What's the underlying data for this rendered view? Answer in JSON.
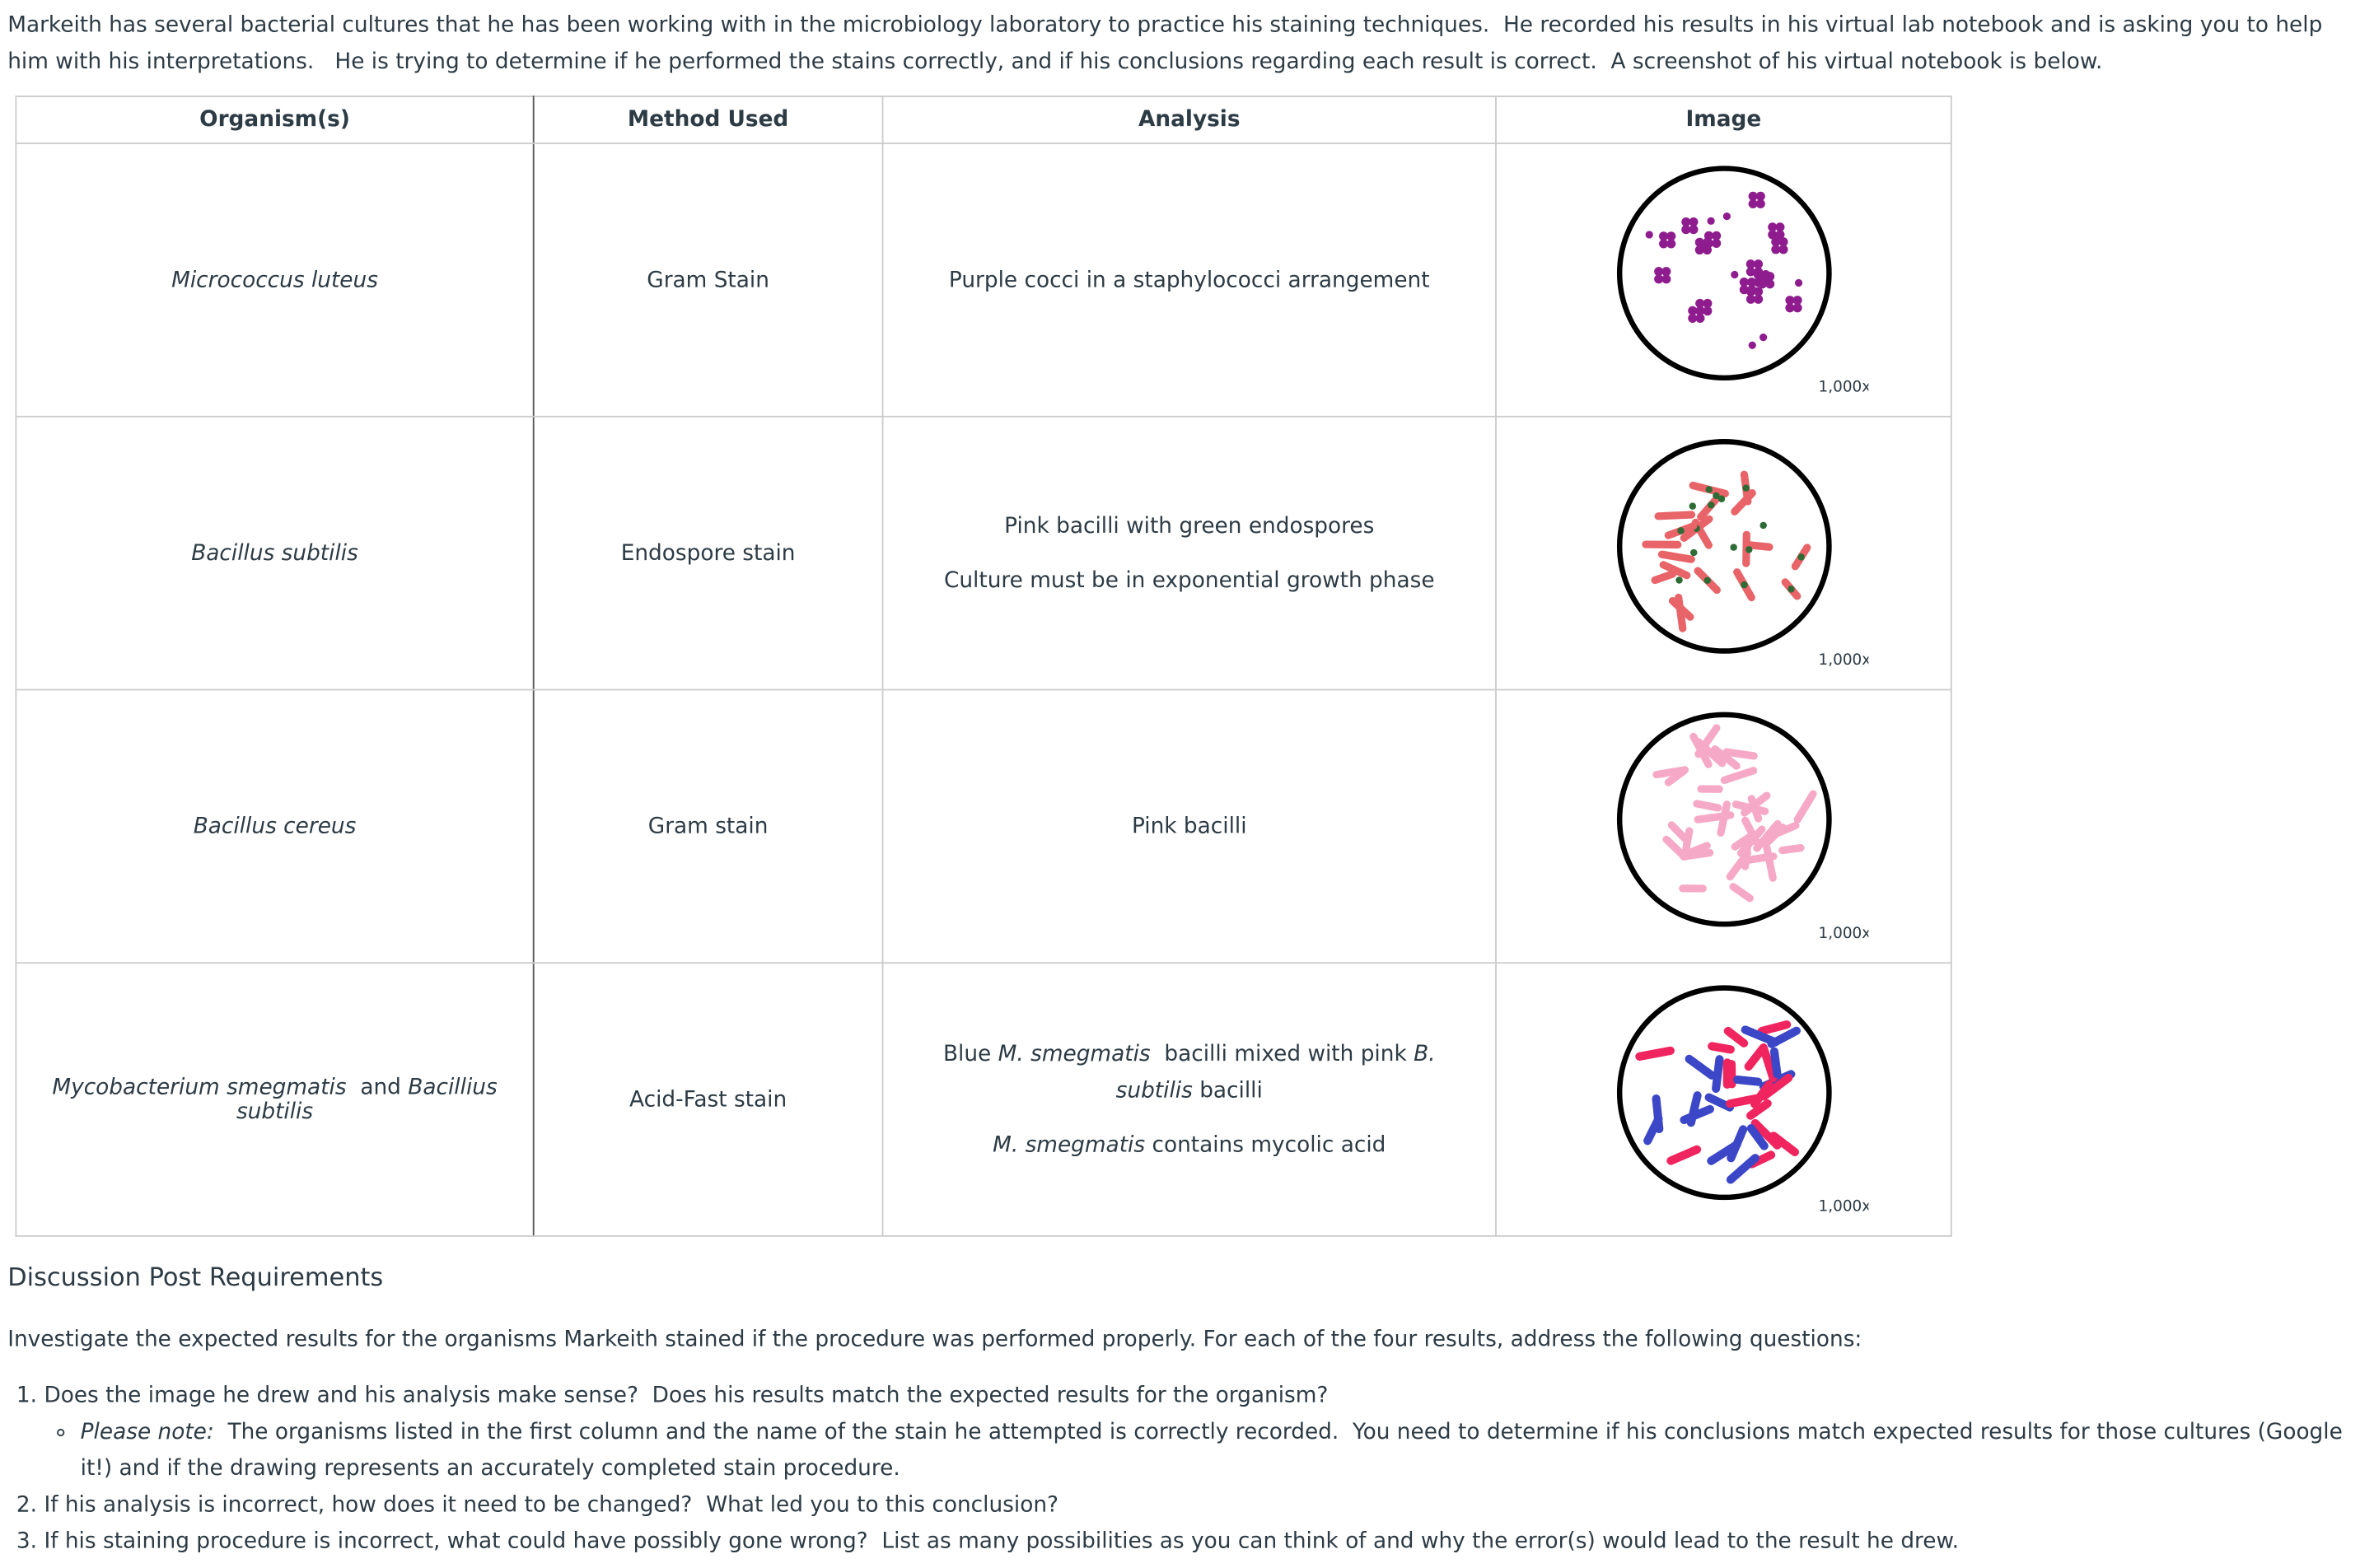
{
  "intro": "Markeith has several bacterial cultures that he has been working with in the microbiology laboratory to practice his staining techniques.  He recorded his results in his virtual lab notebook and is asking you to help him with his interpretations.   He is trying to determine if he performed the stains correctly, and if his conclusions regarding each result is correct.  A screenshot of his virtual notebook is below.",
  "table": {
    "headers": [
      "Organism(s)",
      "Method Used",
      "Analysis",
      "Image"
    ],
    "rows": [
      {
        "organism": [
          {
            "text": "Micrococcus luteus",
            "italic": true
          }
        ],
        "method": "Gram Stain",
        "analysis": [
          [
            {
              "text": "Purple cocci in a staphylococci arrangement",
              "italic": false
            }
          ]
        ],
        "magnification": "1,000x"
      },
      {
        "organism": [
          {
            "text": "Bacillus subtilis",
            "italic": true
          }
        ],
        "method": "Endospore stain",
        "analysis": [
          [
            {
              "text": "Pink bacilli with green endospores",
              "italic": false
            }
          ],
          [
            {
              "text": "Culture must be in exponential growth phase",
              "italic": false
            }
          ]
        ],
        "magnification": "1,000x"
      },
      {
        "organism": [
          {
            "text": "Bacillus cereus",
            "italic": true
          }
        ],
        "method": "Gram stain",
        "analysis": [
          [
            {
              "text": "Pink bacilli",
              "italic": false
            }
          ]
        ],
        "magnification": "1,000x"
      },
      {
        "organism": [
          {
            "text": "Mycobacterium smegmatis",
            "italic": true
          },
          {
            "text": "  and ",
            "italic": false
          },
          {
            "text": "Bacillius subtilis",
            "italic": true
          }
        ],
        "method": "Acid-Fast stain",
        "analysis": [
          [
            {
              "text": "Blue ",
              "italic": false
            },
            {
              "text": "M. smegmatis",
              "italic": true
            },
            {
              "text": "  bacilli mixed with pink ",
              "italic": false
            },
            {
              "text": "B. subtilis",
              "italic": true
            },
            {
              "text": " bacilli",
              "italic": false
            }
          ],
          [
            {
              "text": "M. smegmatis",
              "italic": true
            },
            {
              "text": " contains mycolic acid",
              "italic": false
            }
          ]
        ],
        "magnification": "1,000x"
      }
    ]
  },
  "discussion": {
    "heading": "Discussion Post Requirements",
    "paragraph": "Investigate the expected results for the organisms Markeith stained if the procedure was performed properly.  For each of the four results, address the following questions:",
    "items": [
      {
        "text": "Does the image he drew and his analysis make sense?  Does his results match the expected results for the organism?",
        "subitems": [
          [
            {
              "text": "Please note:",
              "italic": true
            },
            {
              "text": "  The organisms listed in the first column and the name of the stain he attempted is correctly recorded.  You need to determine if his conclusions match expected results for those cultures (Google it!) and if the drawing represents an accurately completed stain procedure.",
              "italic": false
            }
          ]
        ]
      },
      {
        "text": "If his analysis is incorrect, how does it need to be changed?  What led you to this conclusion?"
      },
      {
        "text": "If his staining procedure is incorrect, what could have possibly gone wrong?  List as many possibilities as you can think of and why the error(s) would lead to the result he drew."
      }
    ]
  }
}
